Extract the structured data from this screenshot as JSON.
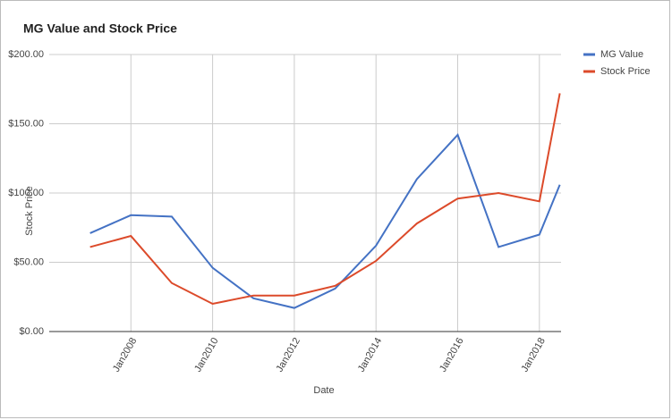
{
  "chart_data": {
    "type": "line",
    "title": "MG Value and Stock Price",
    "x_label": "Date",
    "y_label": "Stock Price",
    "x": [
      2007,
      2008,
      2009,
      2010,
      2011,
      2012,
      2013,
      2014,
      2015,
      2016,
      2017,
      2018,
      2018.5
    ],
    "series": [
      {
        "name": "MG Value",
        "color": "#4472c4",
        "values": [
          71,
          84,
          83,
          46,
          24,
          17,
          31,
          62,
          110,
          142,
          61,
          70,
          106
        ]
      },
      {
        "name": "Stock Price",
        "color": "#dc4a2a",
        "values": [
          61,
          69,
          35,
          20,
          26,
          26,
          33,
          51,
          78,
          96,
          100,
          94,
          172
        ]
      }
    ],
    "xlim": [
      2006,
      2018.53
    ],
    "xticks": [
      {
        "value": 2008,
        "label": "Jan2008"
      },
      {
        "value": 2010,
        "label": "Jan2010"
      },
      {
        "value": 2012,
        "label": "Jan2012"
      },
      {
        "value": 2014,
        "label": "Jan2014"
      },
      {
        "value": 2016,
        "label": "Jan2016"
      },
      {
        "value": 2018,
        "label": "Jan2018"
      }
    ],
    "ylim": [
      0,
      200
    ],
    "yticks": [
      {
        "value": 0,
        "label": "$0.00"
      },
      {
        "value": 50,
        "label": "$50.00"
      },
      {
        "value": 100,
        "label": "$100.00"
      },
      {
        "value": 150,
        "label": "$150.00"
      },
      {
        "value": 200,
        "label": "$200.00"
      }
    ],
    "grid": true,
    "legend": "right"
  }
}
